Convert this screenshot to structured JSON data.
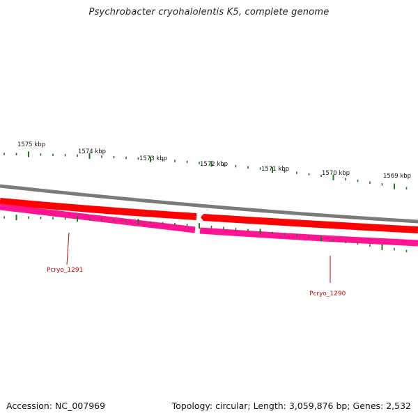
{
  "title": "Psychrobacter cryohalolentis K5, complete genome",
  "footer": {
    "accession": "Accession: NC_007969",
    "summary": "Topology: circular; Length: 3,059,876 bp; Genes: 2,532"
  },
  "scale_labels": [
    "1575 kbp",
    "1574 kbp",
    "1573 kbp",
    "1572 kbp",
    "1571 kbp",
    "1570 kbp",
    "1569 kbp"
  ],
  "genes": [
    {
      "name": "Pcryo_1291",
      "strand": "forward"
    },
    {
      "name": "Pcryo_1290",
      "strand": "forward"
    }
  ],
  "colors": {
    "backbone": "#7a7a7a",
    "cds_red": "#ff0000",
    "cds_red_dark": "#c80000",
    "cds_pink": "#ff1493",
    "cds_pink_dark": "#b0106a",
    "tick": "#1a7a1a",
    "gene_label": "#cc0000"
  }
}
